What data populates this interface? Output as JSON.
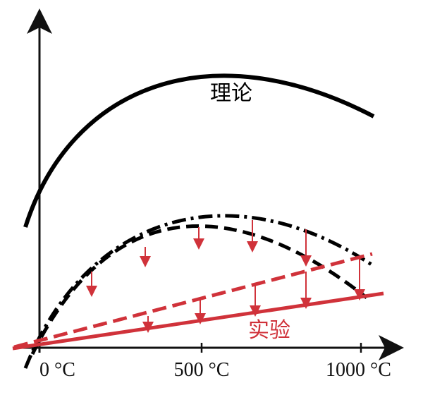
{
  "chart_data": {
    "type": "line",
    "x_ticks": [
      {
        "value": 0,
        "label": "0 °C"
      },
      {
        "value": 500,
        "label": "500 °C"
      },
      {
        "value": 1000,
        "label": "1000 °C"
      }
    ],
    "series": [
      {
        "name": "理论",
        "style": "solid",
        "color": "#000000"
      },
      {
        "style": "dash-dot",
        "color": "#000000"
      },
      {
        "style": "dashed",
        "color": "#000000"
      },
      {
        "style": "dashed",
        "color": "#d0323a"
      },
      {
        "name": "实验",
        "style": "solid",
        "color": "#d0323a"
      }
    ],
    "colors": {
      "theory": "#000000",
      "experiment": "#d0323a",
      "arrows": "#d0323a"
    }
  }
}
